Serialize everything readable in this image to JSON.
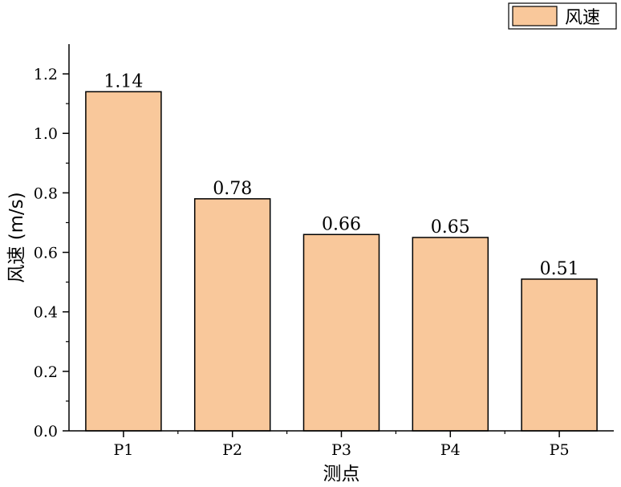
{
  "chart_data": {
    "type": "bar",
    "categories": [
      "P1",
      "P2",
      "P3",
      "P4",
      "P5"
    ],
    "series": [
      {
        "name": "风速",
        "values": [
          1.14,
          0.78,
          0.66,
          0.65,
          0.51
        ],
        "labels": [
          "1.14",
          "0.78",
          "0.66",
          "0.65",
          "0.51"
        ]
      }
    ],
    "xlabel": "测点",
    "ylabel": "风速 (m/s)",
    "ylim": [
      0,
      1.3
    ],
    "yticks": [
      0.0,
      0.2,
      0.4,
      0.6,
      0.8,
      1.0,
      1.2
    ],
    "ytick_labels": [
      "0.0",
      "0.2",
      "0.4",
      "0.6",
      "0.8",
      "1.0",
      "1.2"
    ],
    "bar_color": "#F9C89B",
    "bar_edge_color": "#000000",
    "grid": false,
    "legend_position": "top-right"
  }
}
